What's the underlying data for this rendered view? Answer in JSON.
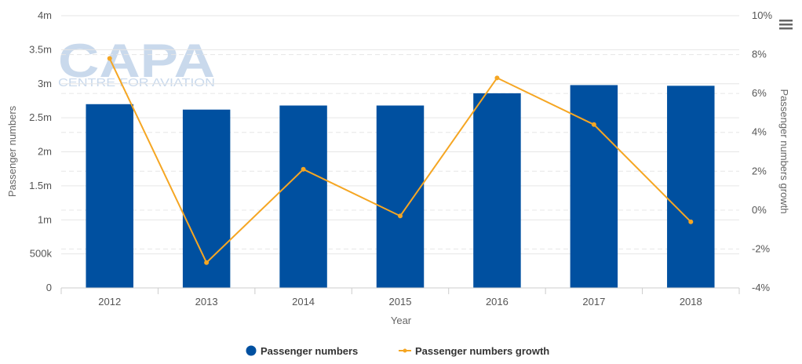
{
  "watermark": {
    "logo": "CAPA",
    "tagline": "CENTRE FOR AVIATION"
  },
  "menu_icon": "hamburger-menu-icon",
  "colors": {
    "bars": "#0050a0",
    "line": "#f5a623",
    "grid": "#e6e6e6",
    "watermark": "#c9d9ec"
  },
  "chart_data": {
    "type": "bar",
    "categories": [
      "2012",
      "2013",
      "2014",
      "2015",
      "2016",
      "2017",
      "2018"
    ],
    "xlabel": "Year",
    "ylabel": "Passenger numbers",
    "y2label": "Passenger numbers growth",
    "ylim": [
      0,
      4000000
    ],
    "y2lim": [
      -4,
      10
    ],
    "y_ticks": [
      "0",
      "500k",
      "1m",
      "1.5m",
      "2m",
      "2.5m",
      "3m",
      "3.5m",
      "4m"
    ],
    "y2_ticks": [
      "-4%",
      "-2%",
      "0%",
      "2%",
      "4%",
      "6%",
      "8%",
      "10%"
    ],
    "series": [
      {
        "name": "Passenger numbers",
        "kind": "bar",
        "axis": "left",
        "values": [
          2700000,
          2620000,
          2680000,
          2680000,
          2860000,
          2980000,
          2970000
        ]
      },
      {
        "name": "Passenger numbers growth",
        "kind": "line",
        "axis": "right",
        "values": [
          7.8,
          -2.7,
          2.1,
          -0.3,
          6.8,
          4.4,
          -0.6
        ]
      }
    ],
    "legend_position": "bottom-center",
    "grid": true
  }
}
